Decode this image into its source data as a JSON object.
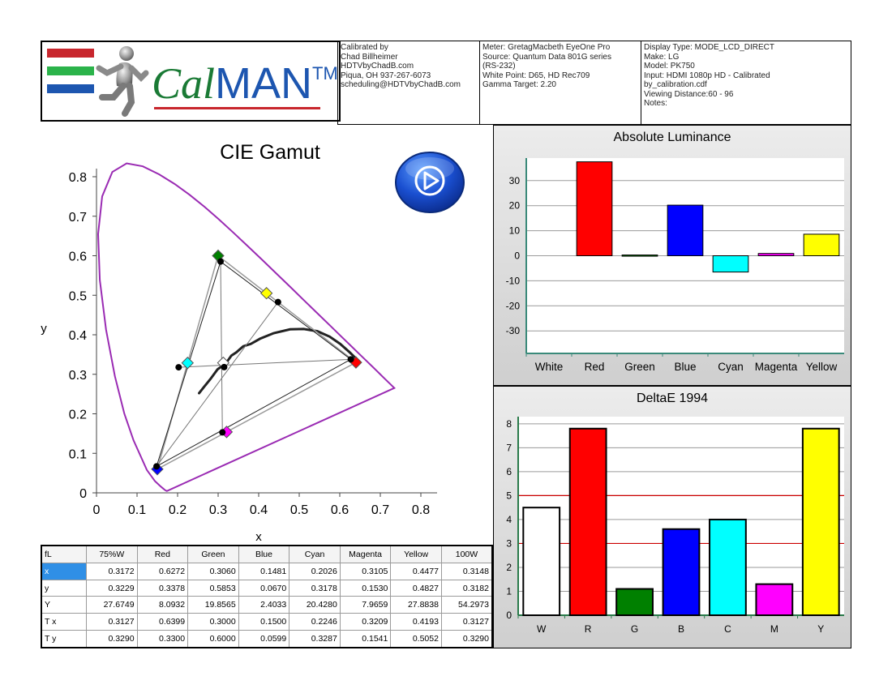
{
  "logo": {
    "brand_cal": "Cal",
    "brand_man": "MAN",
    "trademark": "TM"
  },
  "header": {
    "calibration": [
      "Calibrated by",
      "Chad Billheimer",
      "HDTVbyChadB.com",
      "Piqua, OH 937-267-6073",
      "scheduling@HDTVbyChadB.com"
    ],
    "meter": [
      "Meter: GretagMacbeth EyeOne Pro",
      "Source: Quantum Data 801G series",
      "(RS-232)",
      "White Point: D65, HD Rec709",
      "Gamma Target: 2.20"
    ],
    "display": [
      "Display Type: MODE_LCD_DIRECT",
      "Make: LG",
      "Model: PK750",
      "Input: HDMI 1080p HD    -    Calibrated",
      "by_calibration.cdf",
      "Viewing Distance:60 - 96",
      "Notes:"
    ]
  },
  "colors": {
    "red": "#ff0000",
    "green": "#008000",
    "blue": "#0000ff",
    "cyan": "#00ffff",
    "magenta": "#ff00ff",
    "yellow": "#ffff00",
    "white": "#ffffff",
    "locus": "#9a2bb3",
    "threshold": "#cc0000",
    "accent": "#1d56b0"
  },
  "play_icon": "play-circle-icon",
  "chart_data": [
    {
      "type": "scatter",
      "title": "CIE Gamut",
      "xlabel": "x",
      "ylabel": "y",
      "xlim": [
        0,
        0.8
      ],
      "ylim": [
        0,
        0.8
      ],
      "xticks": [
        "0",
        "0.1",
        "0.2",
        "0.3",
        "0.4",
        "0.5",
        "0.6",
        "0.7",
        "0.8"
      ],
      "yticks": [
        "0",
        "0.1",
        "0.2",
        "0.3",
        "0.4",
        "0.5",
        "0.6",
        "0.7",
        "0.8"
      ],
      "measured": [
        {
          "name": "Red",
          "x": 0.6272,
          "y": 0.3378
        },
        {
          "name": "Green",
          "x": 0.306,
          "y": 0.5853
        },
        {
          "name": "Blue",
          "x": 0.1481,
          "y": 0.067
        },
        {
          "name": "Cyan",
          "x": 0.2026,
          "y": 0.3178
        },
        {
          "name": "Magenta",
          "x": 0.3105,
          "y": 0.153
        },
        {
          "name": "Yellow",
          "x": 0.4477,
          "y": 0.4827
        },
        {
          "name": "White",
          "x": 0.3148,
          "y": 0.3182
        }
      ],
      "targets": [
        {
          "name": "Red",
          "x": 0.6399,
          "y": 0.33,
          "color": "#ff0000"
        },
        {
          "name": "Green",
          "x": 0.3,
          "y": 0.6,
          "color": "#008000"
        },
        {
          "name": "Blue",
          "x": 0.15,
          "y": 0.0599,
          "color": "#0000ff"
        },
        {
          "name": "Cyan",
          "x": 0.2246,
          "y": 0.3287,
          "color": "#00ffff"
        },
        {
          "name": "Magenta",
          "x": 0.3209,
          "y": 0.1541,
          "color": "#ff00ff"
        },
        {
          "name": "Yellow",
          "x": 0.4193,
          "y": 0.5052,
          "color": "#ffff00"
        },
        {
          "name": "White",
          "x": 0.3127,
          "y": 0.329,
          "color": "#ffffff"
        }
      ],
      "locus": [
        [
          0.1741,
          0.005
        ],
        [
          0.173,
          0.0048
        ],
        [
          0.169,
          0.0069
        ],
        [
          0.1644,
          0.0109
        ],
        [
          0.1566,
          0.0177
        ],
        [
          0.144,
          0.0297
        ],
        [
          0.1241,
          0.0578
        ],
        [
          0.0913,
          0.1327
        ],
        [
          0.0687,
          0.2007
        ],
        [
          0.0454,
          0.295
        ],
        [
          0.0235,
          0.4127
        ],
        [
          0.0082,
          0.5384
        ],
        [
          0.0039,
          0.6548
        ],
        [
          0.0139,
          0.7502
        ],
        [
          0.0389,
          0.812
        ],
        [
          0.0743,
          0.8338
        ],
        [
          0.1142,
          0.8262
        ],
        [
          0.1547,
          0.8059
        ],
        [
          0.1929,
          0.7816
        ],
        [
          0.2296,
          0.7543
        ],
        [
          0.2658,
          0.7243
        ],
        [
          0.3016,
          0.6923
        ],
        [
          0.3373,
          0.6589
        ],
        [
          0.3731,
          0.6245
        ],
        [
          0.4087,
          0.5896
        ],
        [
          0.4441,
          0.5547
        ],
        [
          0.4788,
          0.5202
        ],
        [
          0.5125,
          0.4866
        ],
        [
          0.5448,
          0.4544
        ],
        [
          0.5752,
          0.4242
        ],
        [
          0.6029,
          0.3965
        ],
        [
          0.627,
          0.3725
        ],
        [
          0.6482,
          0.3514
        ],
        [
          0.6658,
          0.334
        ],
        [
          0.6801,
          0.3197
        ],
        [
          0.6915,
          0.3083
        ],
        [
          0.7006,
          0.2993
        ],
        [
          0.7079,
          0.292
        ],
        [
          0.7347,
          0.2653
        ]
      ],
      "planckian": [
        [
          0.253,
          0.252
        ],
        [
          0.265,
          0.268
        ],
        [
          0.281,
          0.288
        ],
        [
          0.2986,
          0.3126
        ],
        [
          0.3135,
          0.3236
        ],
        [
          0.3221,
          0.3318
        ],
        [
          0.3325,
          0.3472
        ],
        [
          0.3447,
          0.3553
        ],
        [
          0.362,
          0.3709
        ],
        [
          0.3805,
          0.3768
        ],
        [
          0.4032,
          0.39
        ],
        [
          0.437,
          0.4042
        ],
        [
          0.4774,
          0.4137
        ],
        [
          0.5112,
          0.4146
        ],
        [
          0.5448,
          0.4091
        ],
        [
          0.575,
          0.3952
        ],
        [
          0.601,
          0.377
        ],
        [
          0.625,
          0.355
        ],
        [
          0.647,
          0.333
        ]
      ]
    },
    {
      "type": "bar",
      "title": "Absolute Luminance",
      "categories": [
        "White",
        "Red",
        "Green",
        "Blue",
        "Cyan",
        "Magenta",
        "Yellow"
      ],
      "values": [
        0,
        37.5,
        0.3,
        20.2,
        -6.5,
        0.9,
        8.6
      ],
      "colors": [
        "#ffffff",
        "#ff0000",
        "#008000",
        "#0000ff",
        "#00ffff",
        "#ff00ff",
        "#ffff00"
      ],
      "ylim": [
        -39,
        39
      ],
      "yticks": [
        -30,
        -20,
        -10,
        0,
        10,
        20,
        30
      ]
    },
    {
      "type": "bar",
      "title": "DeltaE 1994",
      "categories": [
        "W",
        "R",
        "G",
        "B",
        "C",
        "M",
        "Y"
      ],
      "values": [
        4.5,
        7.8,
        1.1,
        3.6,
        4.0,
        1.3,
        7.8
      ],
      "colors": [
        "#ffffff",
        "#ff0000",
        "#008000",
        "#0000ff",
        "#00ffff",
        "#ff00ff",
        "#ffff00"
      ],
      "ylim": [
        0,
        8.3
      ],
      "yticks": [
        0,
        1,
        2,
        3,
        4,
        5,
        6,
        7,
        8
      ],
      "thresholds": [
        3,
        5
      ]
    }
  ],
  "table": {
    "columns": [
      "fL",
      "75%W",
      "Red",
      "Green",
      "Blue",
      "Cyan",
      "Magenta",
      "Yellow",
      "100W"
    ],
    "rows": [
      [
        "x",
        "0.3172",
        "0.6272",
        "0.3060",
        "0.1481",
        "0.2026",
        "0.3105",
        "0.4477",
        "0.3148"
      ],
      [
        "y",
        "0.3229",
        "0.3378",
        "0.5853",
        "0.0670",
        "0.3178",
        "0.1530",
        "0.4827",
        "0.3182"
      ],
      [
        "Y",
        "27.6749",
        "8.0932",
        "19.8565",
        "2.4033",
        "20.4280",
        "7.9659",
        "27.8838",
        "54.2973"
      ],
      [
        "T x",
        "0.3127",
        "0.6399",
        "0.3000",
        "0.1500",
        "0.2246",
        "0.3209",
        "0.4193",
        "0.3127"
      ],
      [
        "T y",
        "0.3290",
        "0.3300",
        "0.6000",
        "0.0599",
        "0.3287",
        "0.1541",
        "0.5052",
        "0.3290"
      ]
    ]
  }
}
